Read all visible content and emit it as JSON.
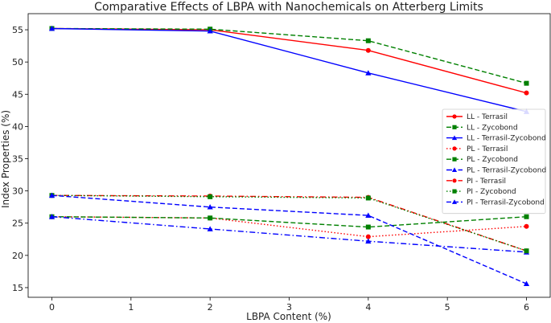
{
  "chart_data": {
    "type": "line",
    "title": "Comparative Effects of LBPA with Nanochemicals on Atterberg Limits",
    "xlabel": "LBPA Content (%)",
    "ylabel": "Index Properties (%)",
    "x": [
      0,
      2,
      4,
      6
    ],
    "xlim": [
      -0.3,
      6.3
    ],
    "ylim": [
      13.5,
      57.5
    ],
    "xticks": [
      0,
      1,
      2,
      3,
      4,
      5,
      6
    ],
    "yticks": [
      15,
      20,
      25,
      30,
      35,
      40,
      45,
      50,
      55
    ],
    "grid": false,
    "legend_position": "center-right",
    "series": [
      {
        "name": "LL - Terrasil",
        "values": [
          55.2,
          55.0,
          51.8,
          45.2
        ],
        "color": "#ff0000",
        "dash": "solid",
        "marker": "circle"
      },
      {
        "name": "LL - Zycobond",
        "values": [
          55.2,
          55.1,
          53.3,
          46.7
        ],
        "color": "#008000",
        "dash": "dashed",
        "marker": "square"
      },
      {
        "name": "LL - Terrasil-Zycobond",
        "values": [
          55.2,
          54.8,
          48.3,
          42.3
        ],
        "color": "#0000ff",
        "dash": "solid",
        "marker": "triangle"
      },
      {
        "name": "PL - Terrasil",
        "values": [
          26.0,
          25.8,
          22.9,
          24.5
        ],
        "color": "#ff0000",
        "dash": "dotted",
        "marker": "circle"
      },
      {
        "name": "PL - Zycobond",
        "values": [
          26.0,
          25.8,
          24.4,
          26.0
        ],
        "color": "#008000",
        "dash": "dashed",
        "marker": "square"
      },
      {
        "name": "PL - Terrasil-Zycobond",
        "values": [
          26.0,
          24.1,
          22.2,
          20.5
        ],
        "color": "#0000ff",
        "dash": "dashdot",
        "marker": "triangle"
      },
      {
        "name": "PI - Terrasil",
        "values": [
          29.3,
          29.2,
          29.0,
          20.7
        ],
        "color": "#ff0000",
        "dash": "dashdot",
        "marker": "circle"
      },
      {
        "name": "PI - Zycobond",
        "values": [
          29.3,
          29.1,
          28.9,
          20.7
        ],
        "color": "#008000",
        "dash": "dotted",
        "marker": "square"
      },
      {
        "name": "PI - Terrasil-Zycobond",
        "values": [
          29.3,
          27.5,
          26.2,
          15.6
        ],
        "color": "#0000ff",
        "dash": "dashed",
        "marker": "triangle"
      }
    ]
  }
}
